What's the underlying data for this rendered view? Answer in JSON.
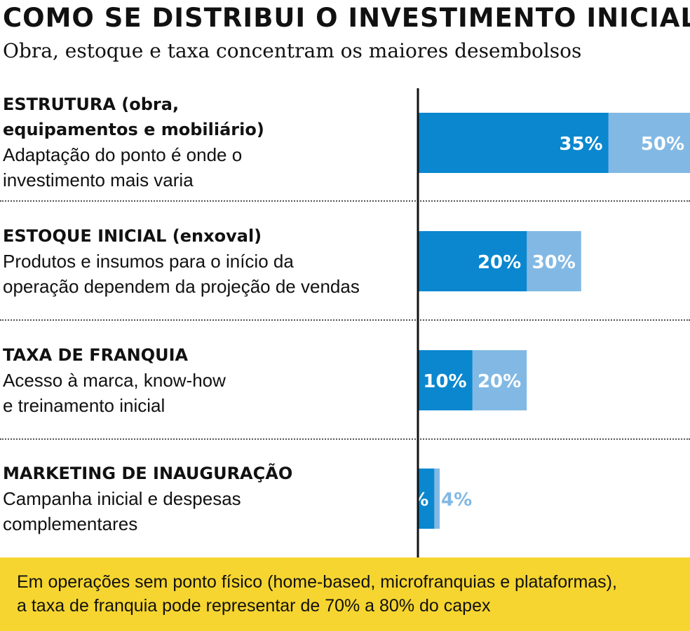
{
  "title": "COMO SE DISTRIBUI O INVESTIMENTO INICIAL",
  "subtitle": "Obra, estoque e taxa concentram os maiores desembolsos",
  "rows": [
    {
      "name_line1": "ESTRUTURA (obra,",
      "name_line2": "equipamentos e mobiliário)",
      "desc_line1": "Adaptação do ponto é onde o",
      "desc_line2": "investimento mais varia"
    },
    {
      "name_line1": "ESTOQUE INICIAL (enxoval)",
      "desc_line1": "Produtos e insumos para o início da",
      "desc_line2": "operação dependem da projeção de vendas"
    },
    {
      "name_line1": "TAXA DE FRANQUIA",
      "desc_line1": "Acesso à marca, know-how",
      "desc_line2": "e treinamento inicial"
    },
    {
      "name_line1": "MARKETING DE INAUGURAÇÃO",
      "desc_line1": "Campanha inicial e despesas",
      "desc_line2": "complementares"
    }
  ],
  "note": {
    "line1": "Em operações sem ponto físico (home-based, microfranquias e plataformas),",
    "line2": "a taxa de franquia pode representar de 70% a 80% do capex"
  },
  "colors": {
    "min_bar": "#0a87cf",
    "max_bar": "#82b9e4",
    "label_on_bar": "#ffffff",
    "note_background": "#f6d530",
    "axis": "#111111"
  },
  "chart_data": {
    "type": "bar",
    "orientation": "horizontal",
    "categories": [
      "ESTRUTURA (obra, equipamentos e mobiliário)",
      "ESTOQUE INICIAL (enxoval)",
      "TAXA DE FRANQUIA",
      "MARKETING DE INAUGURAÇÃO"
    ],
    "series": [
      {
        "values": [
          35,
          20,
          10,
          3
        ],
        "labels": [
          "35%",
          "20%",
          "10%",
          "3%"
        ]
      },
      {
        "values": [
          50,
          30,
          20,
          4
        ],
        "labels": [
          "50%",
          "30%",
          "20%",
          "4%"
        ]
      }
    ],
    "layout": "overlapping range bars (lower value drawn over upper value)",
    "unit": "%",
    "xlim": [
      0,
      50
    ],
    "grid": false,
    "legend": "none"
  }
}
